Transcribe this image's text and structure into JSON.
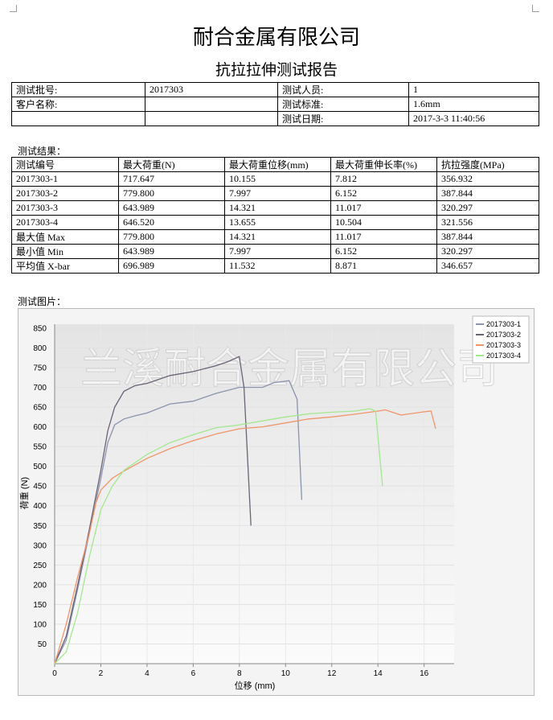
{
  "header": {
    "title": "耐合金属有限公司",
    "subtitle": "抗拉拉伸测试报告"
  },
  "info": {
    "rows": [
      [
        "测试批号:",
        "2017303",
        "测试人员:",
        "1"
      ],
      [
        "客户名称:",
        null,
        "测试标准:",
        "1.6mm"
      ],
      [
        null,
        null,
        "测试日期:",
        "2017-3-3 11:40:56"
      ]
    ]
  },
  "results": {
    "label": "测试结果：",
    "header": [
      "测试编号",
      "最大荷重(N)",
      "最大荷重位移(mm)",
      "最大荷重伸长率(%)",
      "抗拉强度(MPa)"
    ],
    "rows": [
      [
        "2017303-1",
        "717.647",
        "10.155",
        "7.812",
        "356.932"
      ],
      [
        "2017303-2",
        "779.800",
        "7.997",
        "6.152",
        "387.844"
      ],
      [
        "2017303-3",
        "643.989",
        "14.321",
        "11.017",
        "320.297"
      ],
      [
        "2017303-4",
        "646.520",
        "13.655",
        "10.504",
        "321.556"
      ],
      [
        "最大值 Max",
        "779.800",
        "14.321",
        "11.017",
        "387.844"
      ],
      [
        "最小值 Min",
        "643.989",
        "7.997",
        "6.152",
        "320.297"
      ],
      [
        "平均值 X-bar",
        "696.989",
        "11.532",
        "8.871",
        "346.657"
      ]
    ]
  },
  "picture_label": "测试图片：",
  "chart_data": {
    "type": "line",
    "watermark": "兰溪耐合金属有限公司",
    "x_label": "位移 (mm)",
    "y_label": "荷重 (N)",
    "xlim": [
      0,
      17.3
    ],
    "ylim": [
      0,
      860
    ],
    "xticks": [
      0,
      2,
      4,
      6,
      8,
      10,
      12,
      14,
      16
    ],
    "yticks": [
      50,
      100,
      150,
      200,
      250,
      300,
      350,
      400,
      450,
      500,
      550,
      600,
      650,
      700,
      750,
      800,
      850
    ],
    "grid": true,
    "legend": "top-right",
    "series": [
      {
        "name": "2017303-1",
        "color": "#8b93ae",
        "x": [
          0,
          0.5,
          1,
          1.5,
          2,
          2.3,
          2.6,
          3,
          3.5,
          4,
          5,
          6,
          7,
          8,
          9,
          9.5,
          10.155,
          10.5,
          10.7
        ],
        "values": [
          0,
          60,
          190,
          330,
          470,
          560,
          605,
          620,
          628,
          635,
          658,
          665,
          685,
          700,
          700,
          712,
          717,
          670,
          415
        ]
      },
      {
        "name": "2017303-2",
        "color": "#6b6275",
        "x": [
          0,
          0.5,
          1,
          1.5,
          2,
          2.3,
          2.6,
          3,
          3.5,
          4,
          5,
          6,
          7,
          7.5,
          7.997,
          8.2,
          8.5
        ],
        "values": [
          0,
          70,
          200,
          340,
          490,
          590,
          650,
          690,
          705,
          710,
          730,
          740,
          755,
          765,
          778,
          700,
          350
        ]
      },
      {
        "name": "2017303-3",
        "color": "#f0956a",
        "x": [
          0,
          0.5,
          1,
          1.5,
          1.8,
          2,
          2.5,
          3,
          4,
          5,
          6,
          7,
          8,
          9,
          10,
          11,
          12,
          13,
          14,
          14.321,
          15,
          16,
          16.3,
          16.5
        ],
        "values": [
          0,
          100,
          220,
          330,
          410,
          440,
          470,
          488,
          520,
          545,
          565,
          582,
          595,
          600,
          610,
          620,
          625,
          632,
          640,
          643,
          630,
          638,
          640,
          595
        ]
      },
      {
        "name": "2017303-4",
        "color": "#a3e88f",
        "x": [
          0,
          0.5,
          1,
          1.5,
          2,
          2.5,
          3,
          4,
          5,
          6,
          7,
          8,
          9,
          10,
          11,
          12,
          13,
          13.655,
          13.9,
          14.2
        ],
        "values": [
          0,
          30,
          130,
          270,
          390,
          450,
          490,
          530,
          560,
          580,
          598,
          605,
          615,
          625,
          633,
          637,
          640,
          646,
          640,
          450
        ]
      }
    ]
  }
}
